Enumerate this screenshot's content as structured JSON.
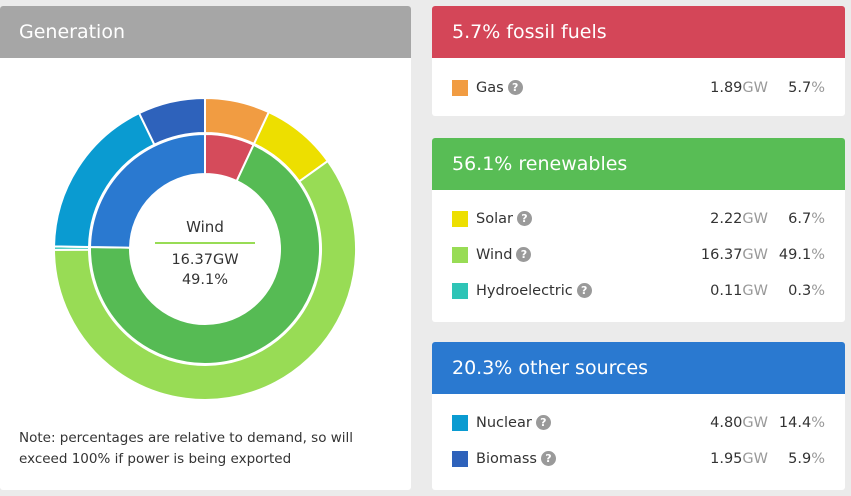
{
  "generation": {
    "title": "Generation",
    "center_label": "Wind",
    "center_value": "16.37GW",
    "center_pct": "49.1%",
    "note": "Note: percentages are relative to demand, so will exceed 100% if power is being exported"
  },
  "chart_data": {
    "type": "pie",
    "subtype": "double-donut",
    "outer": [
      {
        "name": "Gas",
        "value": 1.89,
        "percent": 5.7,
        "color": "#f19c42"
      },
      {
        "name": "Solar",
        "value": 2.22,
        "percent": 6.7,
        "color": "#eddf00"
      },
      {
        "name": "Wind",
        "value": 16.37,
        "percent": 49.1,
        "color": "#98dc55"
      },
      {
        "name": "Hydroelectric",
        "value": 0.11,
        "percent": 0.3,
        "color": "#2ec4b6"
      },
      {
        "name": "Nuclear",
        "value": 4.8,
        "percent": 14.4,
        "color": "#0a9bd1"
      },
      {
        "name": "Biomass",
        "value": 1.95,
        "percent": 5.9,
        "color": "#2e62bb"
      }
    ],
    "inner": [
      {
        "name": "fossil fuels",
        "percent": 5.7,
        "color": "#d54b5b"
      },
      {
        "name": "renewables",
        "percent": 56.1,
        "color": "#56bb54"
      },
      {
        "name": "other sources",
        "percent": 20.3,
        "color": "#2a79d0"
      }
    ]
  },
  "groups": [
    {
      "title": "5.7% fossil fuels",
      "color": "#d44658",
      "rows": [
        {
          "name": "Gas",
          "color": "#f19c42",
          "value": "1.89",
          "unit": "GW",
          "pct": "5.7",
          "pct_unit": "%"
        }
      ]
    },
    {
      "title": "56.1% renewables",
      "color": "#58bd55",
      "rows": [
        {
          "name": "Solar",
          "color": "#eddf00",
          "value": "2.22",
          "unit": "GW",
          "pct": "6.7",
          "pct_unit": "%"
        },
        {
          "name": "Wind",
          "color": "#98dc55",
          "value": "16.37",
          "unit": "GW",
          "pct": "49.1",
          "pct_unit": "%"
        },
        {
          "name": "Hydroelectric",
          "color": "#2ec4b6",
          "value": "0.11",
          "unit": "GW",
          "pct": "0.3",
          "pct_unit": "%"
        }
      ]
    },
    {
      "title": "20.3% other sources",
      "color": "#2a79d0",
      "rows": [
        {
          "name": "Nuclear",
          "color": "#0a9bd1",
          "value": "4.80",
          "unit": "GW",
          "pct": "14.4",
          "pct_unit": "%"
        },
        {
          "name": "Biomass",
          "color": "#2e62bb",
          "value": "1.95",
          "unit": "GW",
          "pct": "5.9",
          "pct_unit": "%"
        }
      ]
    }
  ]
}
